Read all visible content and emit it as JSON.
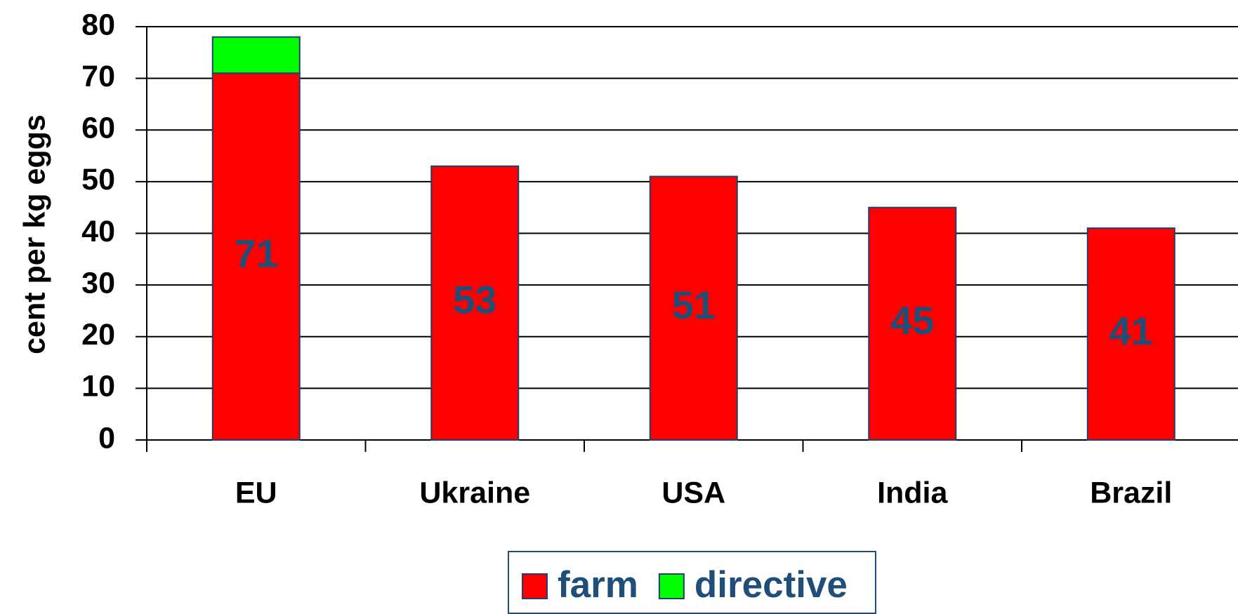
{
  "chart_data": {
    "type": "stacked_bar",
    "y_label": "cent per kg eggs",
    "categories": [
      "EU",
      "Ukraine",
      "USA",
      "India",
      "Brazil"
    ],
    "series": [
      {
        "name": "farm",
        "color": "#ff0000",
        "values": [
          71,
          53,
          51,
          45,
          41
        ],
        "data_labels": true
      },
      {
        "name": "directive",
        "color": "#00ff00",
        "values": [
          7,
          0,
          0,
          0,
          0
        ],
        "data_labels": false
      }
    ],
    "ylim": [
      0,
      80
    ],
    "yticks": [
      0,
      10,
      20,
      30,
      40,
      50,
      60,
      70,
      80
    ],
    "grid": true,
    "legend": "bottom"
  }
}
